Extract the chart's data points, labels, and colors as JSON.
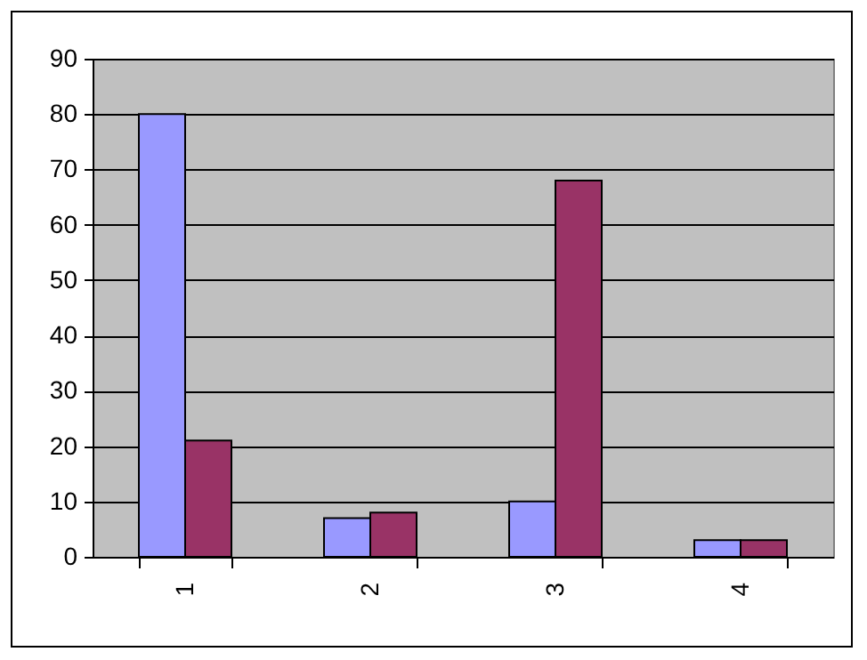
{
  "chart_data": {
    "type": "bar",
    "categories": [
      "1",
      "2",
      "3",
      "4"
    ],
    "series": [
      {
        "color": "#9999ff",
        "values": [
          80,
          7,
          10,
          3
        ]
      },
      {
        "color": "#993366",
        "values": [
          21,
          8,
          68,
          3
        ]
      }
    ],
    "ylim": [
      0,
      90
    ],
    "yticks": [
      0,
      10,
      20,
      30,
      40,
      50,
      60,
      70,
      80,
      90
    ],
    "grid": "y",
    "legend": false
  }
}
